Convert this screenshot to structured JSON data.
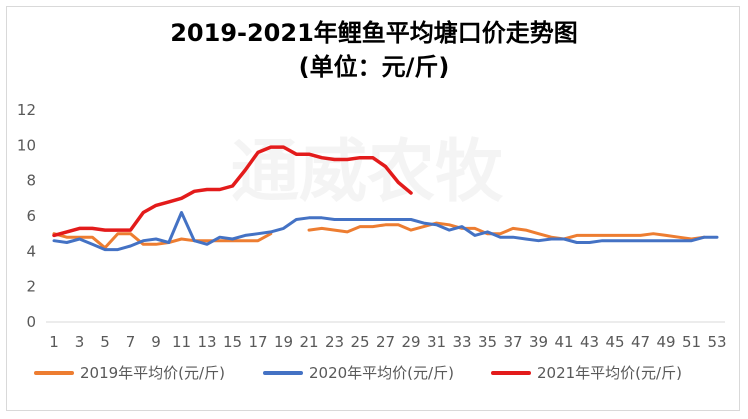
{
  "chart_data": {
    "type": "line",
    "title": "2019-2021年鲤鱼平均塘口价走势图",
    "subtitle": "(单位：元/斤)",
    "watermark": "通威农牧",
    "xlabel": "",
    "ylabel": "",
    "ylim": [
      0,
      12
    ],
    "yticks": [
      0,
      2,
      4,
      6,
      8,
      10,
      12
    ],
    "xlim": [
      1,
      53
    ],
    "xticks": [
      1,
      3,
      5,
      7,
      9,
      11,
      13,
      15,
      17,
      19,
      21,
      23,
      25,
      27,
      29,
      31,
      33,
      35,
      37,
      39,
      41,
      43,
      45,
      47,
      49,
      51,
      53
    ],
    "grid": false,
    "legend_position": "bottom",
    "series": [
      {
        "name": "2019年平均价(元/斤)",
        "color": "#ED7D31",
        "points": [
          [
            1,
            5.0
          ],
          [
            2,
            4.8
          ],
          [
            3,
            4.8
          ],
          [
            4,
            4.8
          ],
          [
            5,
            4.2
          ],
          [
            6,
            5.0
          ],
          [
            7,
            5.0
          ],
          [
            8,
            4.4
          ],
          [
            9,
            4.4
          ],
          [
            10,
            4.5
          ],
          [
            11,
            4.7
          ],
          [
            12,
            4.6
          ],
          [
            13,
            4.6
          ],
          [
            14,
            4.6
          ],
          [
            15,
            4.6
          ],
          [
            16,
            4.6
          ],
          [
            17,
            4.6
          ],
          [
            18,
            5.0
          ],
          [
            21,
            5.2
          ],
          [
            22,
            5.3
          ],
          [
            23,
            5.2
          ],
          [
            24,
            5.1
          ],
          [
            25,
            5.4
          ],
          [
            26,
            5.4
          ],
          [
            27,
            5.5
          ],
          [
            28,
            5.5
          ],
          [
            29,
            5.2
          ],
          [
            30,
            5.4
          ],
          [
            31,
            5.6
          ],
          [
            32,
            5.5
          ],
          [
            33,
            5.3
          ],
          [
            34,
            5.3
          ],
          [
            35,
            5.0
          ],
          [
            36,
            5.0
          ],
          [
            37,
            5.3
          ],
          [
            38,
            5.2
          ],
          [
            39,
            5.0
          ],
          [
            40,
            4.8
          ],
          [
            41,
            4.7
          ],
          [
            42,
            4.9
          ],
          [
            43,
            4.9
          ],
          [
            44,
            4.9
          ],
          [
            45,
            4.9
          ],
          [
            46,
            4.9
          ],
          [
            47,
            4.9
          ],
          [
            48,
            5.0
          ],
          [
            49,
            4.9
          ],
          [
            50,
            4.8
          ],
          [
            51,
            4.7
          ],
          [
            52,
            4.8
          ]
        ]
      },
      {
        "name": "2020年平均价(元/斤)",
        "color": "#4472C4",
        "points": [
          [
            1,
            4.6
          ],
          [
            2,
            4.5
          ],
          [
            3,
            4.7
          ],
          [
            4,
            4.4
          ],
          [
            5,
            4.1
          ],
          [
            6,
            4.1
          ],
          [
            7,
            4.3
          ],
          [
            8,
            4.6
          ],
          [
            9,
            4.7
          ],
          [
            10,
            4.5
          ],
          [
            11,
            6.2
          ],
          [
            12,
            4.6
          ],
          [
            13,
            4.4
          ],
          [
            14,
            4.8
          ],
          [
            15,
            4.7
          ],
          [
            16,
            4.9
          ],
          [
            17,
            5.0
          ],
          [
            18,
            5.1
          ],
          [
            19,
            5.3
          ],
          [
            20,
            5.8
          ],
          [
            21,
            5.9
          ],
          [
            22,
            5.9
          ],
          [
            23,
            5.8
          ],
          [
            24,
            5.8
          ],
          [
            25,
            5.8
          ],
          [
            26,
            5.8
          ],
          [
            27,
            5.8
          ],
          [
            28,
            5.8
          ],
          [
            29,
            5.8
          ],
          [
            30,
            5.6
          ],
          [
            31,
            5.5
          ],
          [
            32,
            5.2
          ],
          [
            33,
            5.4
          ],
          [
            34,
            4.9
          ],
          [
            35,
            5.1
          ],
          [
            36,
            4.8
          ],
          [
            37,
            4.8
          ],
          [
            38,
            4.7
          ],
          [
            39,
            4.6
          ],
          [
            40,
            4.7
          ],
          [
            41,
            4.7
          ],
          [
            42,
            4.5
          ],
          [
            43,
            4.5
          ],
          [
            44,
            4.6
          ],
          [
            45,
            4.6
          ],
          [
            46,
            4.6
          ],
          [
            47,
            4.6
          ],
          [
            48,
            4.6
          ],
          [
            49,
            4.6
          ],
          [
            50,
            4.6
          ],
          [
            51,
            4.6
          ],
          [
            52,
            4.8
          ],
          [
            53,
            4.8
          ]
        ]
      },
      {
        "name": "2021年平均价(元/斤)",
        "color": "#E31B1B",
        "points": [
          [
            1,
            4.9
          ],
          [
            2,
            5.1
          ],
          [
            3,
            5.3
          ],
          [
            4,
            5.3
          ],
          [
            5,
            5.2
          ],
          [
            6,
            5.2
          ],
          [
            7,
            5.2
          ],
          [
            8,
            6.2
          ],
          [
            9,
            6.6
          ],
          [
            10,
            6.8
          ],
          [
            11,
            7.0
          ],
          [
            12,
            7.4
          ],
          [
            13,
            7.5
          ],
          [
            14,
            7.5
          ],
          [
            15,
            7.7
          ],
          [
            16,
            8.6
          ],
          [
            17,
            9.6
          ],
          [
            18,
            9.9
          ],
          [
            19,
            9.9
          ],
          [
            20,
            9.5
          ],
          [
            21,
            9.5
          ],
          [
            22,
            9.3
          ],
          [
            23,
            9.2
          ],
          [
            24,
            9.2
          ],
          [
            25,
            9.3
          ],
          [
            26,
            9.3
          ],
          [
            27,
            8.8
          ],
          [
            28,
            7.9
          ],
          [
            29,
            7.3
          ]
        ]
      }
    ]
  }
}
